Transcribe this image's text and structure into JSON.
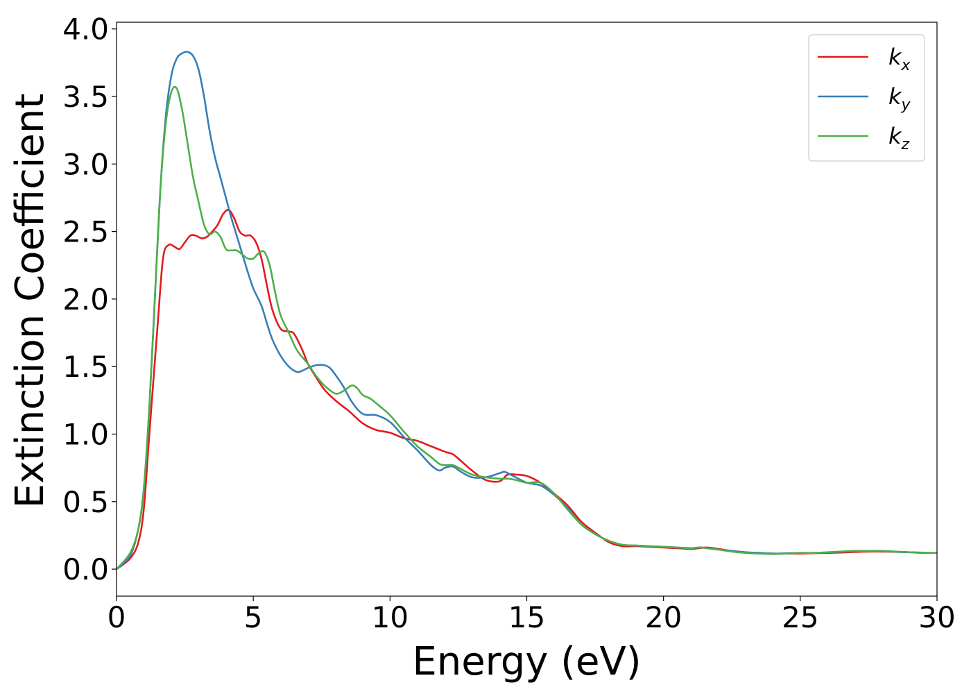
{
  "chart_data": {
    "type": "line",
    "xlabel": "Energy (eV)",
    "ylabel": "Extinction Coefficient",
    "xlim": [
      0,
      30
    ],
    "ylim": [
      -0.2,
      4.05
    ],
    "xticks": [
      0,
      5,
      10,
      15,
      20,
      25,
      30
    ],
    "xtick_labels": [
      "0",
      "5",
      "10",
      "15",
      "20",
      "25",
      "30"
    ],
    "yticks": [
      0.0,
      0.5,
      1.0,
      1.5,
      2.0,
      2.5,
      3.0,
      3.5,
      4.0
    ],
    "ytick_labels": [
      "0.0",
      "0.5",
      "1.0",
      "1.5",
      "2.0",
      "2.5",
      "3.0",
      "3.5",
      "4.0"
    ],
    "grid": false,
    "legend_position": "top-right",
    "series": [
      {
        "name": "k_x",
        "label_main": "k",
        "label_sub": "x",
        "color": "#e41a1c",
        "x": [
          0,
          0.5,
          0.8,
          1.0,
          1.2,
          1.5,
          1.7,
          1.9,
          2.1,
          2.3,
          2.5,
          2.7,
          2.9,
          3.1,
          3.3,
          3.5,
          3.7,
          3.9,
          4.1,
          4.3,
          4.5,
          4.7,
          4.9,
          5.1,
          5.3,
          5.5,
          5.7,
          6.0,
          6.3,
          6.5,
          6.8,
          7.0,
          7.3,
          7.6,
          8.0,
          8.5,
          9.0,
          9.5,
          10.0,
          10.5,
          11.0,
          11.5,
          12.0,
          12.3,
          12.6,
          13.0,
          13.5,
          14.0,
          14.3,
          14.6,
          15.0,
          15.5,
          16.0,
          16.5,
          17.0,
          17.5,
          18.0,
          18.5,
          19.0,
          19.5,
          20.0,
          20.5,
          21.0,
          21.3,
          21.6,
          22.0,
          22.5,
          23.0,
          23.5,
          24.0,
          24.5,
          25.0,
          25.5,
          26.0,
          26.5,
          27.0,
          27.5,
          28.0,
          28.5,
          29.0,
          29.5,
          30.0
        ],
        "y": [
          0.0,
          0.08,
          0.2,
          0.45,
          1.0,
          1.8,
          2.3,
          2.4,
          2.39,
          2.37,
          2.42,
          2.47,
          2.47,
          2.45,
          2.46,
          2.5,
          2.55,
          2.63,
          2.66,
          2.6,
          2.5,
          2.47,
          2.47,
          2.42,
          2.3,
          2.1,
          1.92,
          1.78,
          1.76,
          1.74,
          1.62,
          1.52,
          1.42,
          1.33,
          1.25,
          1.17,
          1.08,
          1.03,
          1.01,
          0.97,
          0.95,
          0.91,
          0.87,
          0.85,
          0.8,
          0.73,
          0.66,
          0.65,
          0.7,
          0.7,
          0.69,
          0.64,
          0.56,
          0.47,
          0.35,
          0.27,
          0.2,
          0.17,
          0.17,
          0.165,
          0.16,
          0.155,
          0.15,
          0.155,
          0.16,
          0.15,
          0.135,
          0.125,
          0.12,
          0.115,
          0.115,
          0.115,
          0.118,
          0.12,
          0.123,
          0.127,
          0.13,
          0.13,
          0.128,
          0.125,
          0.12,
          0.12
        ]
      },
      {
        "name": "k_y",
        "label_main": "k",
        "label_sub": "y",
        "color": "#377eb8",
        "x": [
          0,
          0.5,
          0.8,
          1.0,
          1.2,
          1.4,
          1.6,
          1.8,
          2.0,
          2.2,
          2.4,
          2.6,
          2.8,
          3.0,
          3.2,
          3.4,
          3.6,
          3.8,
          4.0,
          4.2,
          4.5,
          4.8,
          5.0,
          5.3,
          5.5,
          5.7,
          6.0,
          6.3,
          6.6,
          6.8,
          7.0,
          7.3,
          7.6,
          7.8,
          8.0,
          8.3,
          8.6,
          9.0,
          9.5,
          10.0,
          10.5,
          11.0,
          11.5,
          11.8,
          12.0,
          12.3,
          12.6,
          13.0,
          13.5,
          14.0,
          14.2,
          14.5,
          15.0,
          15.5,
          16.0,
          16.5,
          17.0,
          17.5,
          18.0,
          18.5,
          19.0,
          19.5,
          20.0,
          20.5,
          21.0,
          21.3,
          21.6,
          22.0,
          22.5,
          23.0,
          23.5,
          24.0,
          24.5,
          25.0,
          25.5,
          26.0,
          26.5,
          27.0,
          27.5,
          28.0,
          28.5,
          29.0,
          29.5,
          30.0
        ],
        "y": [
          0.0,
          0.1,
          0.3,
          0.6,
          1.2,
          2.0,
          2.8,
          3.35,
          3.65,
          3.78,
          3.82,
          3.83,
          3.8,
          3.7,
          3.5,
          3.25,
          3.05,
          2.9,
          2.75,
          2.6,
          2.4,
          2.2,
          2.08,
          1.95,
          1.82,
          1.7,
          1.58,
          1.5,
          1.46,
          1.47,
          1.49,
          1.51,
          1.51,
          1.49,
          1.44,
          1.35,
          1.24,
          1.15,
          1.14,
          1.09,
          0.98,
          0.88,
          0.77,
          0.73,
          0.75,
          0.76,
          0.72,
          0.68,
          0.68,
          0.71,
          0.72,
          0.69,
          0.64,
          0.62,
          0.55,
          0.45,
          0.33,
          0.26,
          0.21,
          0.18,
          0.175,
          0.17,
          0.165,
          0.16,
          0.155,
          0.16,
          0.155,
          0.145,
          0.135,
          0.125,
          0.12,
          0.115,
          0.118,
          0.12,
          0.12,
          0.125,
          0.13,
          0.135,
          0.135,
          0.135,
          0.128,
          0.125,
          0.122,
          0.12
        ]
      },
      {
        "name": "k_z",
        "label_main": "k",
        "label_sub": "z",
        "color": "#4daf4a",
        "x": [
          0,
          0.5,
          0.8,
          1.0,
          1.2,
          1.4,
          1.6,
          1.8,
          2.0,
          2.2,
          2.4,
          2.6,
          2.8,
          3.0,
          3.2,
          3.4,
          3.6,
          3.8,
          4.0,
          4.2,
          4.4,
          4.6,
          4.8,
          5.0,
          5.2,
          5.4,
          5.6,
          5.8,
          6.0,
          6.3,
          6.6,
          7.0,
          7.3,
          7.6,
          8.0,
          8.3,
          8.6,
          8.8,
          9.0,
          9.3,
          9.6,
          10.0,
          10.5,
          11.0,
          11.5,
          11.8,
          12.0,
          12.3,
          12.6,
          13.0,
          13.5,
          14.0,
          14.3,
          14.6,
          15.0,
          15.5,
          16.0,
          16.5,
          17.0,
          17.5,
          18.0,
          18.5,
          19.0,
          19.5,
          20.0,
          20.5,
          21.0,
          21.3,
          21.6,
          22.0,
          22.5,
          23.0,
          23.5,
          24.0,
          24.5,
          25.0,
          25.5,
          26.0,
          26.5,
          27.0,
          27.5,
          28.0,
          28.5,
          29.0,
          29.5,
          30.0
        ],
        "y": [
          0.0,
          0.12,
          0.3,
          0.6,
          1.2,
          2.0,
          2.8,
          3.3,
          3.53,
          3.56,
          3.4,
          3.15,
          2.9,
          2.72,
          2.55,
          2.48,
          2.5,
          2.46,
          2.37,
          2.36,
          2.36,
          2.33,
          2.3,
          2.3,
          2.34,
          2.35,
          2.25,
          2.05,
          1.88,
          1.75,
          1.62,
          1.52,
          1.43,
          1.36,
          1.3,
          1.32,
          1.36,
          1.34,
          1.29,
          1.26,
          1.21,
          1.14,
          1.02,
          0.91,
          0.83,
          0.78,
          0.77,
          0.77,
          0.74,
          0.7,
          0.68,
          0.67,
          0.67,
          0.66,
          0.64,
          0.64,
          0.56,
          0.44,
          0.33,
          0.26,
          0.21,
          0.18,
          0.175,
          0.17,
          0.165,
          0.16,
          0.155,
          0.16,
          0.155,
          0.145,
          0.13,
          0.12,
          0.115,
          0.112,
          0.115,
          0.12,
          0.12,
          0.125,
          0.13,
          0.135,
          0.135,
          0.135,
          0.13,
          0.125,
          0.12,
          0.12
        ]
      }
    ]
  }
}
